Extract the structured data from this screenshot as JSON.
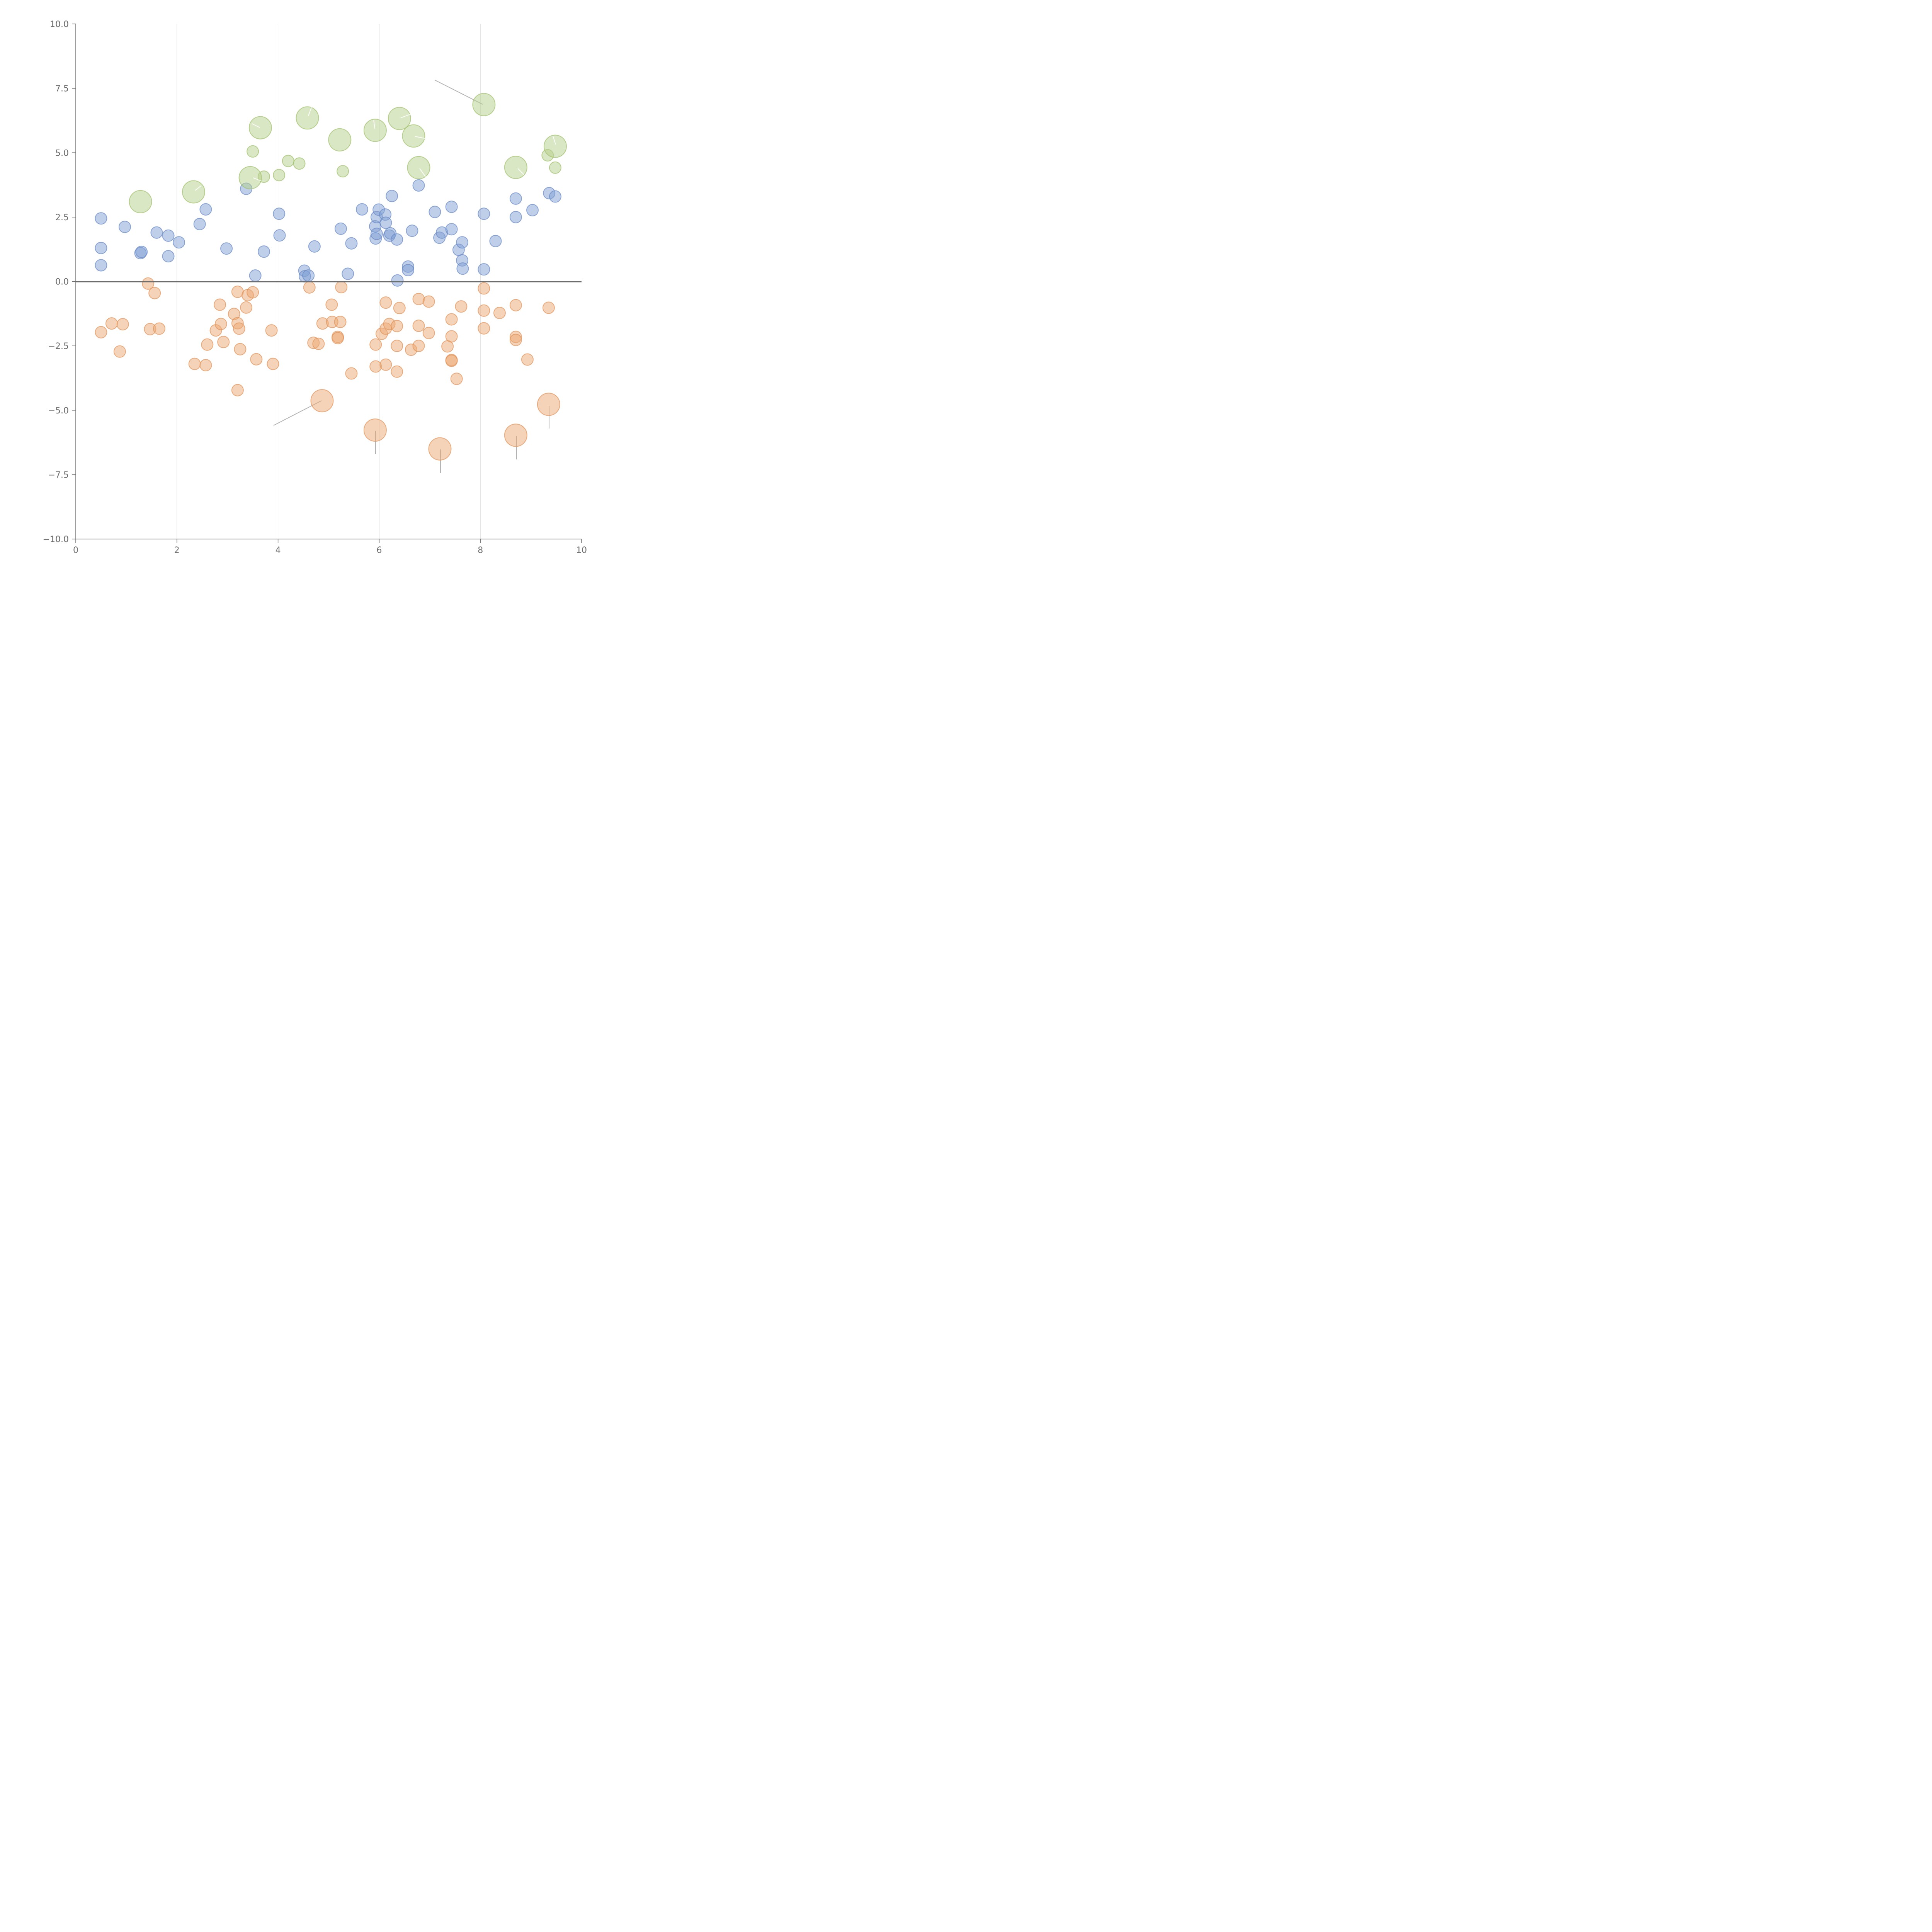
{
  "chart_data": {
    "type": "scatter",
    "title": "",
    "xlabel": "",
    "ylabel": "",
    "xlim": [
      0,
      10
    ],
    "ylim": [
      -10,
      10
    ],
    "x_ticks": [
      0,
      2,
      4,
      6,
      8,
      10
    ],
    "x_tick_labels": [
      "0",
      "2",
      "4",
      "6",
      "8",
      "10"
    ],
    "y_ticks": [
      10,
      7.5,
      5,
      2.5,
      0,
      -2.5,
      -5,
      -7.5,
      -10
    ],
    "y_tick_labels": [
      "10.0",
      "7.5",
      "5.0",
      "2.5",
      "0.0",
      "−2.5",
      "−5.0",
      "−7.5",
      "−10.0"
    ],
    "grid": "vertical",
    "zero_line": 0,
    "series": [
      {
        "name": "blue",
        "color": "#7f9fd4",
        "stroke": "#6688c4",
        "size": "small",
        "points": [
          [
            0.5,
            2.45
          ],
          [
            0.5,
            1.3
          ],
          [
            0.5,
            0.63
          ],
          [
            0.97,
            2.12
          ],
          [
            1.28,
            1.1
          ],
          [
            1.3,
            1.15
          ],
          [
            1.6,
            1.9
          ],
          [
            1.83,
            1.78
          ],
          [
            1.83,
            0.98
          ],
          [
            2.04,
            1.52
          ],
          [
            2.45,
            2.23
          ],
          [
            2.57,
            2.8
          ],
          [
            2.98,
            1.28
          ],
          [
            3.37,
            3.6
          ],
          [
            3.55,
            0.23
          ],
          [
            3.72,
            1.16
          ],
          [
            4.02,
            2.63
          ],
          [
            4.03,
            1.79
          ],
          [
            4.52,
            0.42
          ],
          [
            4.53,
            0.2
          ],
          [
            4.6,
            0.23
          ],
          [
            4.72,
            1.36
          ],
          [
            5.24,
            2.05
          ],
          [
            5.38,
            0.3
          ],
          [
            5.45,
            1.48
          ],
          [
            5.66,
            2.8
          ],
          [
            5.92,
            2.14
          ],
          [
            5.93,
            1.67
          ],
          [
            5.95,
            2.5
          ],
          [
            5.95,
            1.85
          ],
          [
            5.99,
            2.79
          ],
          [
            6.12,
            2.6
          ],
          [
            6.13,
            2.28
          ],
          [
            6.2,
            1.78
          ],
          [
            6.22,
            1.87
          ],
          [
            6.25,
            3.32
          ],
          [
            6.35,
            1.63
          ],
          [
            6.36,
            0.04
          ],
          [
            6.57,
            0.58
          ],
          [
            6.57,
            0.44
          ],
          [
            6.65,
            1.97
          ],
          [
            6.78,
            3.73
          ],
          [
            7.1,
            2.7
          ],
          [
            7.19,
            1.7
          ],
          [
            7.24,
            1.9
          ],
          [
            7.43,
            2.9
          ],
          [
            7.43,
            2.03
          ],
          [
            7.57,
            1.23
          ],
          [
            7.64,
            1.52
          ],
          [
            7.64,
            0.82
          ],
          [
            7.65,
            0.5
          ],
          [
            8.07,
            2.63
          ],
          [
            8.07,
            0.47
          ],
          [
            8.3,
            1.57
          ],
          [
            8.7,
            3.22
          ],
          [
            8.7,
            2.5
          ],
          [
            9.03,
            2.77
          ],
          [
            9.36,
            3.43
          ],
          [
            9.48,
            3.3
          ]
        ]
      },
      {
        "name": "orange",
        "color": "#eba772",
        "stroke": "#df9257",
        "size": "small",
        "points": [
          [
            0.5,
            -1.97
          ],
          [
            0.71,
            -1.63
          ],
          [
            0.87,
            -2.72
          ],
          [
            0.93,
            -1.66
          ],
          [
            1.43,
            -0.08
          ],
          [
            1.47,
            -1.85
          ],
          [
            1.56,
            -0.45
          ],
          [
            1.65,
            -1.83
          ],
          [
            2.35,
            -3.2
          ],
          [
            2.57,
            -3.25
          ],
          [
            2.6,
            -2.45
          ],
          [
            2.77,
            -1.9
          ],
          [
            2.85,
            -0.9
          ],
          [
            2.87,
            -1.65
          ],
          [
            2.92,
            -2.35
          ],
          [
            3.13,
            -1.26
          ],
          [
            3.2,
            -0.4
          ],
          [
            3.2,
            -1.62
          ],
          [
            3.2,
            -4.22
          ],
          [
            3.23,
            -1.83
          ],
          [
            3.25,
            -2.63
          ],
          [
            3.37,
            -1.01
          ],
          [
            3.4,
            -0.53
          ],
          [
            3.5,
            -0.42
          ],
          [
            3.57,
            -3.02
          ],
          [
            3.87,
            -1.9
          ],
          [
            3.9,
            -3.2
          ],
          [
            4.62,
            -0.23
          ],
          [
            4.7,
            -2.38
          ],
          [
            4.8,
            -2.42
          ],
          [
            4.88,
            -1.63
          ],
          [
            5.06,
            -0.9
          ],
          [
            5.07,
            -1.57
          ],
          [
            5.18,
            -2.15
          ],
          [
            5.18,
            -2.2
          ],
          [
            5.23,
            -1.57
          ],
          [
            5.25,
            -0.22
          ],
          [
            5.45,
            -3.57
          ],
          [
            5.93,
            -2.45
          ],
          [
            5.93,
            -3.3
          ],
          [
            6.05,
            -2.03
          ],
          [
            6.13,
            -0.82
          ],
          [
            6.13,
            -1.83
          ],
          [
            6.13,
            -3.23
          ],
          [
            6.2,
            -1.65
          ],
          [
            6.35,
            -1.73
          ],
          [
            6.35,
            -2.5
          ],
          [
            6.35,
            -3.5
          ],
          [
            6.4,
            -1.03
          ],
          [
            6.63,
            -2.65
          ],
          [
            6.78,
            -0.68
          ],
          [
            6.78,
            -1.72
          ],
          [
            6.78,
            -2.5
          ],
          [
            6.98,
            -0.78
          ],
          [
            6.98,
            -2.0
          ],
          [
            7.35,
            -2.52
          ],
          [
            7.43,
            -1.47
          ],
          [
            7.43,
            -2.13
          ],
          [
            7.43,
            -3.05
          ],
          [
            7.43,
            -3.08
          ],
          [
            7.53,
            -3.78
          ],
          [
            7.62,
            -0.97
          ],
          [
            8.07,
            -0.27
          ],
          [
            8.07,
            -1.13
          ],
          [
            8.07,
            -1.82
          ],
          [
            8.38,
            -1.22
          ],
          [
            8.7,
            -0.92
          ],
          [
            8.7,
            -2.15
          ],
          [
            8.7,
            -2.27
          ],
          [
            8.93,
            -3.03
          ],
          [
            9.35,
            -1.02
          ]
        ]
      },
      {
        "name": "green",
        "color": "#b5d08a",
        "stroke": "#9fbf6b",
        "size": "small",
        "points": [
          [
            3.5,
            5.05
          ],
          [
            3.72,
            4.07
          ],
          [
            4.02,
            4.13
          ],
          [
            4.2,
            4.68
          ],
          [
            4.42,
            4.58
          ],
          [
            5.28,
            4.28
          ],
          [
            9.33,
            4.9
          ],
          [
            9.48,
            4.42
          ]
        ]
      },
      {
        "name": "green-large",
        "color": "#b5d08a",
        "stroke": "#9fbf6b",
        "size": "large",
        "points": [
          [
            1.28,
            3.1
          ],
          [
            2.33,
            3.48
          ],
          [
            3.45,
            4.03
          ],
          [
            3.65,
            5.97
          ],
          [
            4.58,
            6.35
          ],
          [
            5.22,
            5.5
          ],
          [
            5.92,
            5.87
          ],
          [
            6.4,
            6.33
          ],
          [
            6.68,
            5.65
          ],
          [
            6.78,
            4.42
          ],
          [
            8.07,
            6.87
          ],
          [
            8.7,
            4.43
          ],
          [
            9.48,
            5.25
          ]
        ]
      },
      {
        "name": "orange-large",
        "color": "#eba772",
        "stroke": "#df9257",
        "size": "large",
        "points": [
          [
            4.87,
            -4.63
          ],
          [
            5.92,
            -5.77
          ],
          [
            7.2,
            -6.5
          ],
          [
            8.7,
            -5.97
          ],
          [
            9.35,
            -4.77
          ]
        ]
      }
    ],
    "annotations": []
  }
}
